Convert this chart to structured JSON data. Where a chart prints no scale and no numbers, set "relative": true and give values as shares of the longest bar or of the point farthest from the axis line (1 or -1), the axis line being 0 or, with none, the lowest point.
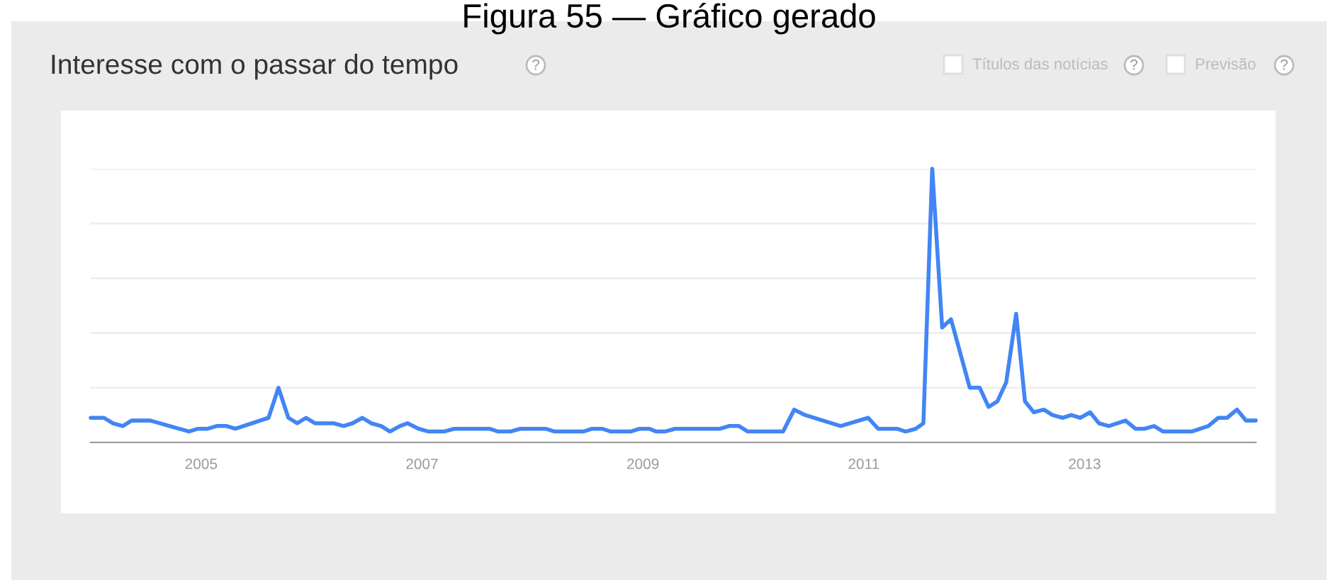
{
  "chart_data": {
    "type": "line",
    "title": "Figura 55 — Gráfico gerado",
    "subtitle": "Interesse com o passar do tempo",
    "annotations": [
      "?",
      "Títulos das notícias",
      "?",
      "Previsão",
      "?"
    ],
    "relative": true,
    "grid": "y",
    "marker": "none",
    "line_style": "solid",
    "xlim": [
      2004.0,
      2014.55
    ],
    "xticks": [
      2005,
      2007,
      2009,
      2011,
      2013
    ],
    "series": [
      {
        "color": "#4285f4",
        "x": [
          2004.0,
          2004.12,
          2004.2,
          2004.29,
          2004.37,
          2004.54,
          2004.89,
          2004.97,
          2005.06,
          2005.14,
          2005.23,
          2005.31,
          2005.61,
          2005.7,
          2005.79,
          2005.87,
          2005.95,
          2006.03,
          2006.2,
          2006.29,
          2006.37,
          2006.46,
          2006.54,
          2006.63,
          2006.71,
          2006.8,
          2006.87,
          2006.97,
          2007.06,
          2007.2,
          2007.29,
          2007.61,
          2007.69,
          2007.8,
          2007.89,
          2008.12,
          2008.2,
          2008.46,
          2008.54,
          2008.63,
          2008.71,
          2008.89,
          2008.97,
          2009.06,
          2009.12,
          2009.2,
          2009.29,
          2009.48,
          2009.7,
          2009.78,
          2009.87,
          2009.95,
          2010.27,
          2010.37,
          2010.47,
          2010.79,
          2011.04,
          2011.13,
          2011.3,
          2011.38,
          2011.47,
          2011.54,
          2011.62,
          2011.71,
          2011.79,
          2011.96,
          2012.05,
          2012.13,
          2012.21,
          2012.29,
          2012.38,
          2012.46,
          2012.54,
          2012.63,
          2012.71,
          2012.8,
          2012.88,
          2012.96,
          2013.05,
          2013.13,
          2013.22,
          2013.37,
          2013.46,
          2013.54,
          2013.63,
          2013.71,
          2013.97,
          2014.12,
          2014.21,
          2014.29,
          2014.38,
          2014.46,
          2014.55
        ],
        "values": [
          0.09,
          0.09,
          0.07,
          0.06,
          0.08,
          0.08,
          0.04,
          0.05,
          0.05,
          0.06,
          0.06,
          0.05,
          0.09,
          0.2,
          0.09,
          0.07,
          0.09,
          0.07,
          0.07,
          0.06,
          0.07,
          0.09,
          0.07,
          0.06,
          0.04,
          0.06,
          0.07,
          0.05,
          0.04,
          0.04,
          0.05,
          0.05,
          0.04,
          0.04,
          0.05,
          0.05,
          0.04,
          0.04,
          0.05,
          0.05,
          0.04,
          0.04,
          0.05,
          0.05,
          0.04,
          0.04,
          0.05,
          0.05,
          0.05,
          0.06,
          0.06,
          0.04,
          0.04,
          0.12,
          0.1,
          0.06,
          0.09,
          0.05,
          0.05,
          0.04,
          0.05,
          0.07,
          1.0,
          0.42,
          0.45,
          0.2,
          0.2,
          0.13,
          0.15,
          0.22,
          0.47,
          0.15,
          0.11,
          0.12,
          0.1,
          0.09,
          0.1,
          0.09,
          0.11,
          0.07,
          0.06,
          0.08,
          0.05,
          0.05,
          0.06,
          0.04,
          0.04,
          0.06,
          0.09,
          0.09,
          0.12,
          0.08,
          0.08
        ]
      }
    ]
  }
}
